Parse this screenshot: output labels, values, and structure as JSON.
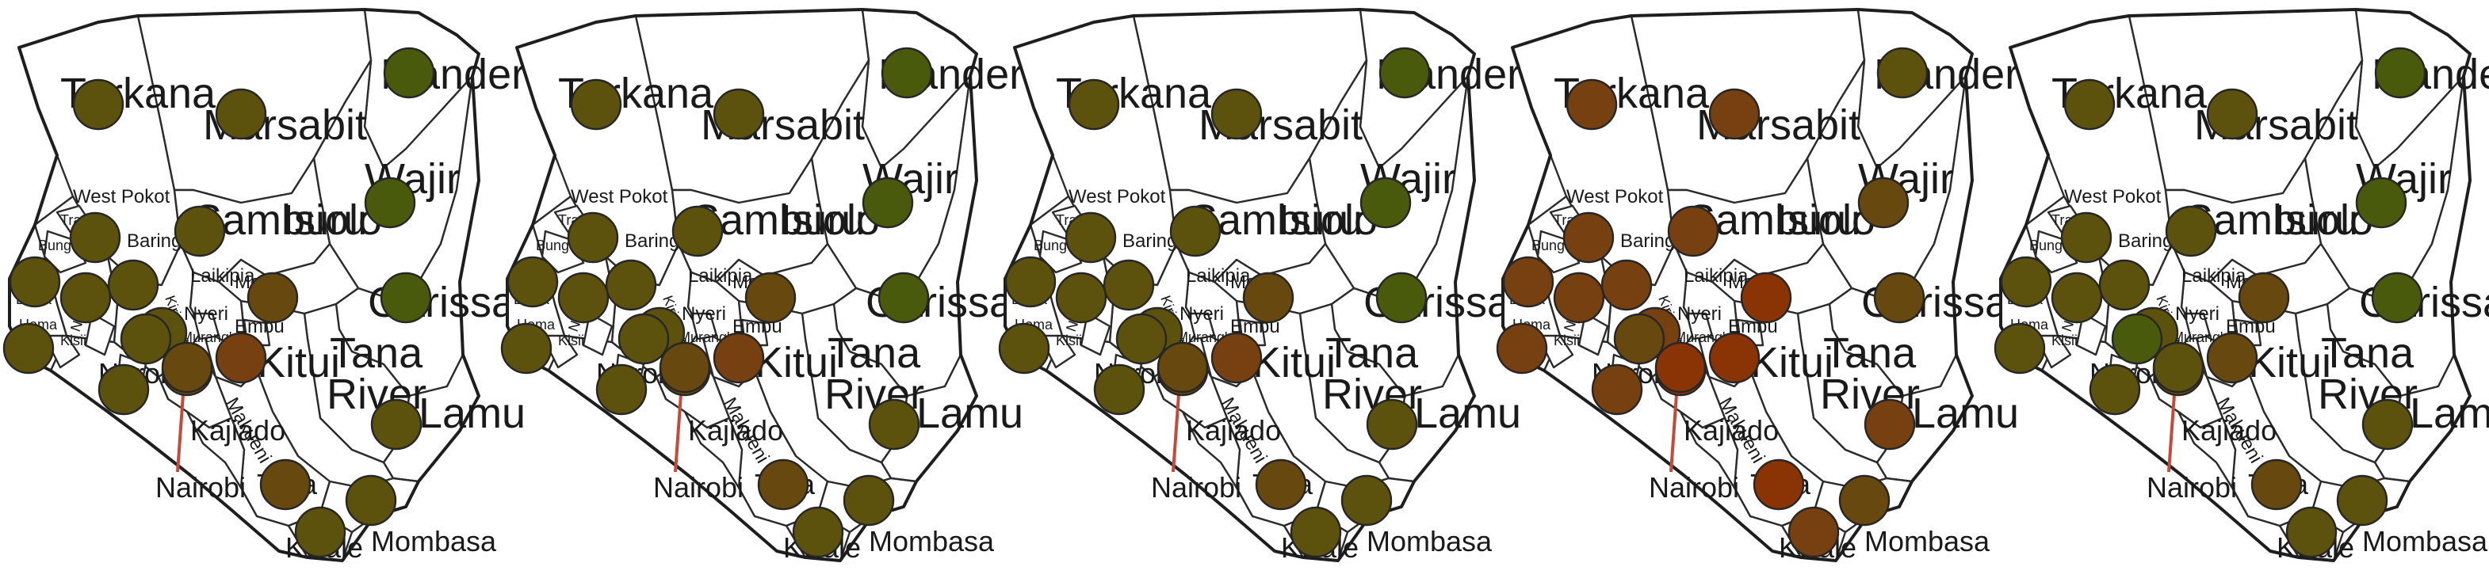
{
  "map": {
    "panel_count": 5,
    "labels": {
      "turkana": "Turkana",
      "marsabit": "Marsabit",
      "mandera": "Mandera",
      "wajir": "Wajir",
      "samburu": "Samburu",
      "isiolo": "Isiolo",
      "west_pokot": "West Pokot",
      "baringo": "Baringo",
      "laikipia": "Laikipia",
      "meru": "Meru",
      "garissa": "Garissa",
      "nyeri": "Nyeri",
      "embu": "Embu",
      "murang_a": "Murang'a",
      "kitui": "Kitui",
      "tana": "Tana",
      "river": "River",
      "narok": "Narok",
      "kajiado": "Kajiado",
      "makueni": "Makueni",
      "lamu": "Lamu",
      "mombasa": "Mombasa",
      "kwale": "Kwale",
      "taita": "Taita",
      "nairobi": "Nairobi",
      "trans_nzoia": "Trans",
      "bungoma": "Bungoma",
      "busia": "Busia",
      "kisii": "Kisii",
      "homa": "Homa",
      "nyamira": "Nyamira",
      "kirinyaga": "Kirinyaga"
    },
    "colors": {
      "green": "#4a5a0c",
      "olive": "#5c520e",
      "olive_brown": "#67480f",
      "brown": "#764010",
      "red_brown": "#8a3405"
    },
    "bubble_colors": [
      {
        "turkana": "olive",
        "marsabit": "olive",
        "mandera": "green",
        "wajir": "green",
        "samburu": "olive",
        "garissa": "green",
        "west_pokot": "olive",
        "baringo": "olive",
        "busia": "olive",
        "kakamega": "olive",
        "nandi": "olive",
        "homa_bay": "olive",
        "kisii": "olive",
        "narok": "olive_brown",
        "nakuru": "olive",
        "meru": "olive_brown",
        "nairobi": "brown",
        "machakos": "olive_brown",
        "lamu": "olive",
        "taita": "olive_brown",
        "kilifi": "olive",
        "kwale": "olive"
      },
      {
        "turkana": "olive",
        "marsabit": "olive",
        "mandera": "green",
        "wajir": "green",
        "samburu": "olive",
        "garissa": "green",
        "west_pokot": "olive",
        "baringo": "olive",
        "busia": "olive",
        "kakamega": "olive",
        "nandi": "olive",
        "homa_bay": "olive",
        "kisii": "olive",
        "narok": "olive_brown",
        "nakuru": "olive",
        "meru": "olive_brown",
        "nairobi": "brown",
        "machakos": "olive_brown",
        "lamu": "olive",
        "taita": "olive_brown",
        "kilifi": "olive",
        "kwale": "olive"
      },
      {
        "turkana": "olive",
        "marsabit": "olive",
        "mandera": "green",
        "wajir": "green",
        "samburu": "olive",
        "garissa": "green",
        "west_pokot": "olive",
        "baringo": "olive",
        "busia": "olive",
        "kakamega": "olive",
        "nandi": "olive",
        "homa_bay": "olive",
        "kisii": "olive",
        "narok": "olive_brown",
        "nakuru": "olive",
        "meru": "olive_brown",
        "nairobi": "brown",
        "machakos": "olive_brown",
        "lamu": "olive",
        "taita": "olive_brown",
        "kilifi": "olive",
        "kwale": "olive"
      },
      {
        "turkana": "brown",
        "marsabit": "brown",
        "mandera": "olive",
        "wajir": "olive_brown",
        "samburu": "brown",
        "garissa": "olive_brown",
        "west_pokot": "brown",
        "baringo": "brown",
        "busia": "brown",
        "kakamega": "brown",
        "nandi": "brown",
        "homa_bay": "olive_brown",
        "kisii": "brown",
        "narok": "red_brown",
        "nakuru": "brown",
        "meru": "red_brown",
        "nairobi": "red_brown",
        "machakos": "red_brown",
        "lamu": "brown",
        "taita": "red_brown",
        "kilifi": "olive_brown",
        "kwale": "brown"
      },
      {
        "turkana": "olive",
        "marsabit": "olive",
        "mandera": "green",
        "wajir": "green",
        "samburu": "olive",
        "garissa": "green",
        "west_pokot": "olive",
        "baringo": "olive",
        "busia": "olive",
        "kakamega": "olive",
        "nandi": "olive",
        "homa_bay": "green",
        "kisii": "olive",
        "narok": "olive",
        "nakuru": "olive",
        "meru": "olive_brown",
        "nairobi": "olive_brown",
        "machakos": "olive_brown",
        "lamu": "olive",
        "taita": "olive_brown",
        "kilifi": "olive",
        "kwale": "olive"
      }
    ]
  }
}
